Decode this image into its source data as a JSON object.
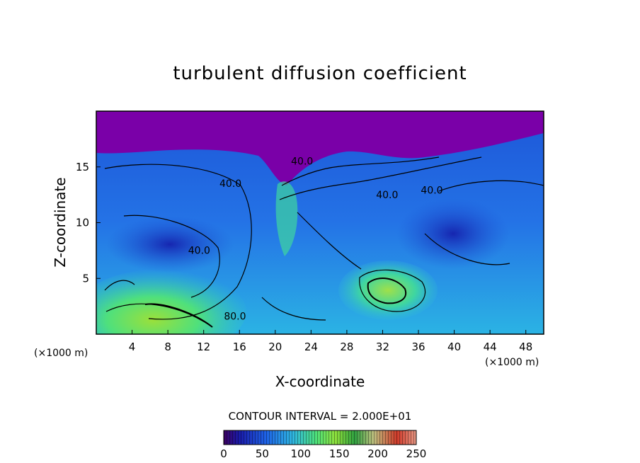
{
  "chart_data": {
    "type": "heatmap",
    "title": "turbulent diffusion coefficient",
    "xlabel": "X-coordinate",
    "ylabel": "Z-coordinate",
    "x_multiplier": "(×1000 m)",
    "z_multiplier": "(×1000 m)",
    "xlim": [
      0,
      50
    ],
    "zlim": [
      0,
      20
    ],
    "xticks": [
      4,
      8,
      12,
      16,
      20,
      24,
      28,
      32,
      36,
      40,
      44,
      48
    ],
    "zticks": [
      5,
      10,
      15
    ],
    "contour_interval_text": "CONTOUR INTERVAL = 2.000E+01",
    "contour_labels": [
      {
        "text": "80.0",
        "x": 15.5,
        "z": 1.3
      },
      {
        "text": "40.0",
        "x": 11.5,
        "z": 7.2
      },
      {
        "text": "40.0",
        "x": 15.0,
        "z": 13.2
      },
      {
        "text": "40.0",
        "x": 23.0,
        "z": 15.2
      },
      {
        "text": "40.0",
        "x": 32.5,
        "z": 12.2
      },
      {
        "text": "40.0",
        "x": 37.5,
        "z": 12.6
      }
    ],
    "colorbar": {
      "min": 0,
      "max": 250,
      "ticks": [
        0,
        50,
        100,
        150,
        200,
        250
      ],
      "colors": [
        "#4b007a",
        "#1a1aa8",
        "#1e62e6",
        "#2fb6e0",
        "#4ee07a",
        "#8fe03c",
        "#2fa040",
        "#bfbf7f",
        "#cf3a2a",
        "#e89a86"
      ]
    },
    "field_regions": [
      {
        "name": "upper stratosphere",
        "value": 0,
        "x": [
          0,
          50
        ],
        "z": [
          16.8,
          20
        ]
      },
      {
        "name": "left lower surface maximum",
        "value": 95,
        "x": [
          3,
          11
        ],
        "z": [
          0.3,
          3.2
        ]
      },
      {
        "name": "central vortex core",
        "value": 110,
        "x": [
          29,
          35
        ],
        "z": [
          2.5,
          5.5
        ]
      },
      {
        "name": "updraft column",
        "value": 100,
        "x": [
          20,
          22
        ],
        "z": [
          7,
          12
        ]
      }
    ]
  }
}
